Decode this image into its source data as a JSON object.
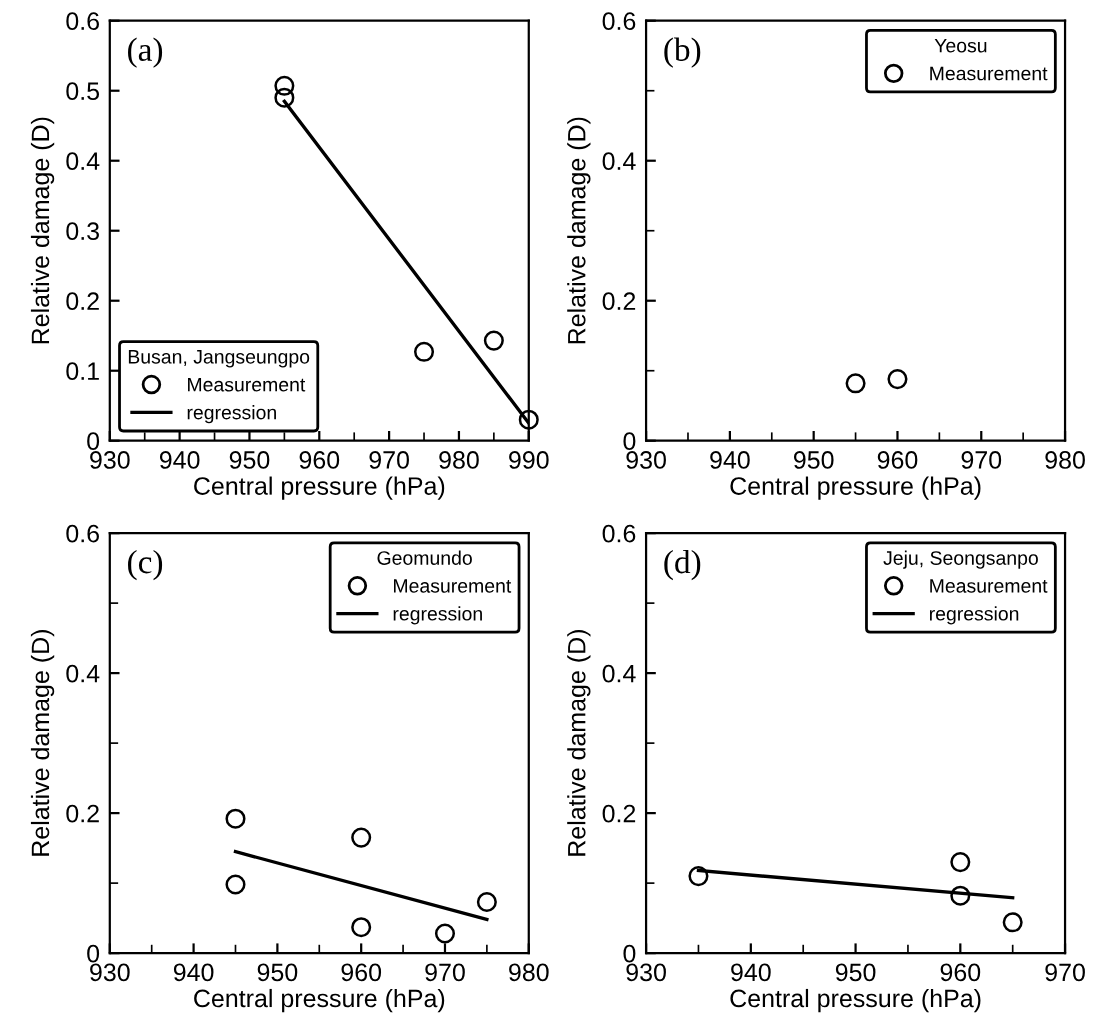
{
  "chart_data": [
    {
      "type": "scatter",
      "annotations": [
        "(a)"
      ],
      "xlabel": "Central pressure (hPa)",
      "ylabel": "Relative damage (D)",
      "legend_title": "Busan, Jangseungpo",
      "legend": "bottom left",
      "grid": false,
      "xlim": [
        930,
        990
      ],
      "xticks": [
        930,
        {
          "value": 935,
          "label": null
        },
        940,
        {
          "value": 945,
          "label": null
        },
        950,
        {
          "value": 955,
          "label": null
        },
        960,
        {
          "value": 965,
          "label": null
        },
        970,
        {
          "value": 975,
          "label": null
        },
        980,
        {
          "value": 985,
          "label": null
        },
        990
      ],
      "ylim": [
        0,
        0.6
      ],
      "yticks": [
        0,
        0.1,
        0.2,
        0.3,
        0.4,
        0.5,
        0.6
      ],
      "series": [
        {
          "name": "Measurement",
          "marker": "circle",
          "color": "#000000",
          "x": [
            955,
            955,
            975,
            985,
            990
          ],
          "values": [
            0.507,
            0.49,
            0.127,
            0.143,
            0.03
          ]
        },
        {
          "name": "regression",
          "type": "line",
          "marker": "none",
          "line_style": "solid",
          "color": "#000000",
          "x": [
            955,
            990
          ],
          "values": [
            0.485,
            0.025
          ]
        }
      ]
    },
    {
      "type": "scatter",
      "annotations": [
        "(b)"
      ],
      "xlabel": "Central pressure (hPa)",
      "ylabel": "Relative damage (D)",
      "legend_title": "Yeosu",
      "legend": "top right",
      "grid": false,
      "xlim": [
        930,
        980
      ],
      "xticks": [
        930,
        {
          "value": 935,
          "label": null
        },
        940,
        {
          "value": 945,
          "label": null
        },
        950,
        {
          "value": 955,
          "label": null
        },
        960,
        {
          "value": 965,
          "label": null
        },
        970,
        {
          "value": 975,
          "label": null
        },
        980
      ],
      "ylim": [
        0,
        0.6
      ],
      "yticks": [
        0,
        {
          "value": 0.1,
          "label": null
        },
        0.2,
        {
          "value": 0.3,
          "label": null
        },
        0.4,
        {
          "value": 0.5,
          "label": null
        },
        0.6
      ],
      "series": [
        {
          "name": "Measurement",
          "marker": "circle",
          "color": "#000000",
          "x": [
            955,
            960
          ],
          "values": [
            0.082,
            0.088
          ]
        }
      ]
    },
    {
      "type": "scatter",
      "annotations": [
        "(c)"
      ],
      "xlabel": "Central pressure (hPa)",
      "ylabel": "Relative damage (D)",
      "legend_title": "Geomundo",
      "legend": "top right",
      "grid": false,
      "xlim": [
        930,
        980
      ],
      "xticks": [
        930,
        {
          "value": 935,
          "label": null
        },
        940,
        {
          "value": 945,
          "label": null
        },
        950,
        {
          "value": 955,
          "label": null
        },
        960,
        {
          "value": 965,
          "label": null
        },
        970,
        {
          "value": 975,
          "label": null
        },
        980
      ],
      "ylim": [
        0,
        0.6
      ],
      "yticks": [
        0,
        {
          "value": 0.1,
          "label": null
        },
        0.2,
        {
          "value": 0.3,
          "label": null
        },
        0.4,
        {
          "value": 0.5,
          "label": null
        },
        0.6
      ],
      "series": [
        {
          "name": "Measurement",
          "marker": "circle",
          "color": "#000000",
          "x": [
            945,
            945,
            960,
            960,
            970,
            975
          ],
          "values": [
            0.192,
            0.098,
            0.165,
            0.037,
            0.028,
            0.073
          ]
        },
        {
          "name": "regression",
          "type": "line",
          "marker": "none",
          "line_style": "solid",
          "color": "#000000",
          "x": [
            945,
            975
          ],
          "values": [
            0.145,
            0.048
          ]
        }
      ]
    },
    {
      "type": "scatter",
      "annotations": [
        "(d)"
      ],
      "xlabel": "Central pressure (hPa)",
      "ylabel": "Relative damage (D)",
      "legend_title": "Jeju, Seongsanpo",
      "legend": "top right",
      "grid": false,
      "xlim": [
        930,
        970
      ],
      "xticks": [
        930,
        {
          "value": 935,
          "label": null
        },
        940,
        {
          "value": 945,
          "label": null
        },
        950,
        {
          "value": 955,
          "label": null
        },
        960,
        {
          "value": 965,
          "label": null
        },
        970
      ],
      "ylim": [
        0,
        0.6
      ],
      "yticks": [
        0,
        {
          "value": 0.1,
          "label": null
        },
        0.2,
        {
          "value": 0.3,
          "label": null
        },
        0.4,
        {
          "value": 0.5,
          "label": null
        },
        0.6
      ],
      "series": [
        {
          "name": "Measurement",
          "marker": "circle",
          "color": "#000000",
          "x": [
            935,
            960,
            960,
            965
          ],
          "values": [
            0.11,
            0.13,
            0.082,
            0.044
          ]
        },
        {
          "name": "regression",
          "type": "line",
          "marker": "none",
          "line_style": "solid",
          "color": "#000000",
          "x": [
            935,
            965
          ],
          "values": [
            0.118,
            0.079
          ]
        }
      ]
    }
  ]
}
